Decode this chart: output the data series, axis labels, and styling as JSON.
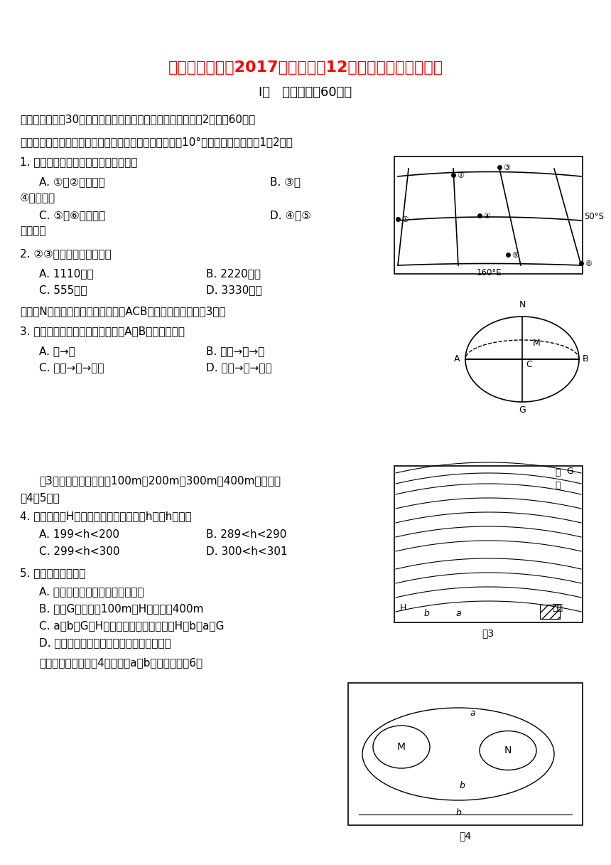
{
  "title": "四川省金堂中学2017届高三地理12月月考试题（无答案）",
  "subtitle": "Ⅰ卷   选择题（共60分）",
  "section1": "一．选择题（共30个小题，每小题只有一个正确答案，每小题2分，共60分）",
  "bg_color": "#ffffff",
  "title_color": "#ff0000",
  "text_color": "#000000",
  "body_lines": [
    "读下面的经纬网示意图，相邻的经．纬线之间的度数相差10°，根据所学知识回答1～2题。",
    "1. 关于各点的方向，下列说法正确的是",
    "    A. ①在②的西南方                              B. ③在",
    "④的正北方",
    "    C. ⑤在⑥的正西方                              D. ④在⑤",
    "的东南方",
    "2. ②③之间的实际距离约为",
    "    A. 1110千米                              B. 2220千米",
    "    C. 555千米                              D. 3330千米",
    "读图，N为北极点，大圆为经线圈，ACB为赤道，据此完成第3题。",
    "3. 按最短飞行路线飞行，该飞机从A到B的飞行方向是",
    "    A. 西→东                              B. 由南→北→南",
    "    C. 东南→东→东北                              D. 东北→东→东南",
    "",
    "    图3等高线的高度分别为100m、200m、300m、400m。试判断",
    "第4～5题：",
    "4. 图中城镇与H地的相对高度的最大值为h，则h的值是",
    "    A. 199<h<200                              B. 289<h<290",
    "    C. 299<h<300                              D. 300<h<301",
    "5. 下列判断正确的是",
    "    A. 图中的三条支流中有一条画错了",
    "    B. 图中G处海拔为100m，H处海拔为400m",
    "    C. a、b、G、H的海拔由大到小排序是：H＞b＞a＞G",
    "    D. 若在我国，图中河流西岸冲刷比东岸严重",
    "    读等高线示意图（图4），已知a＞b，读图回答第6～"
  ]
}
